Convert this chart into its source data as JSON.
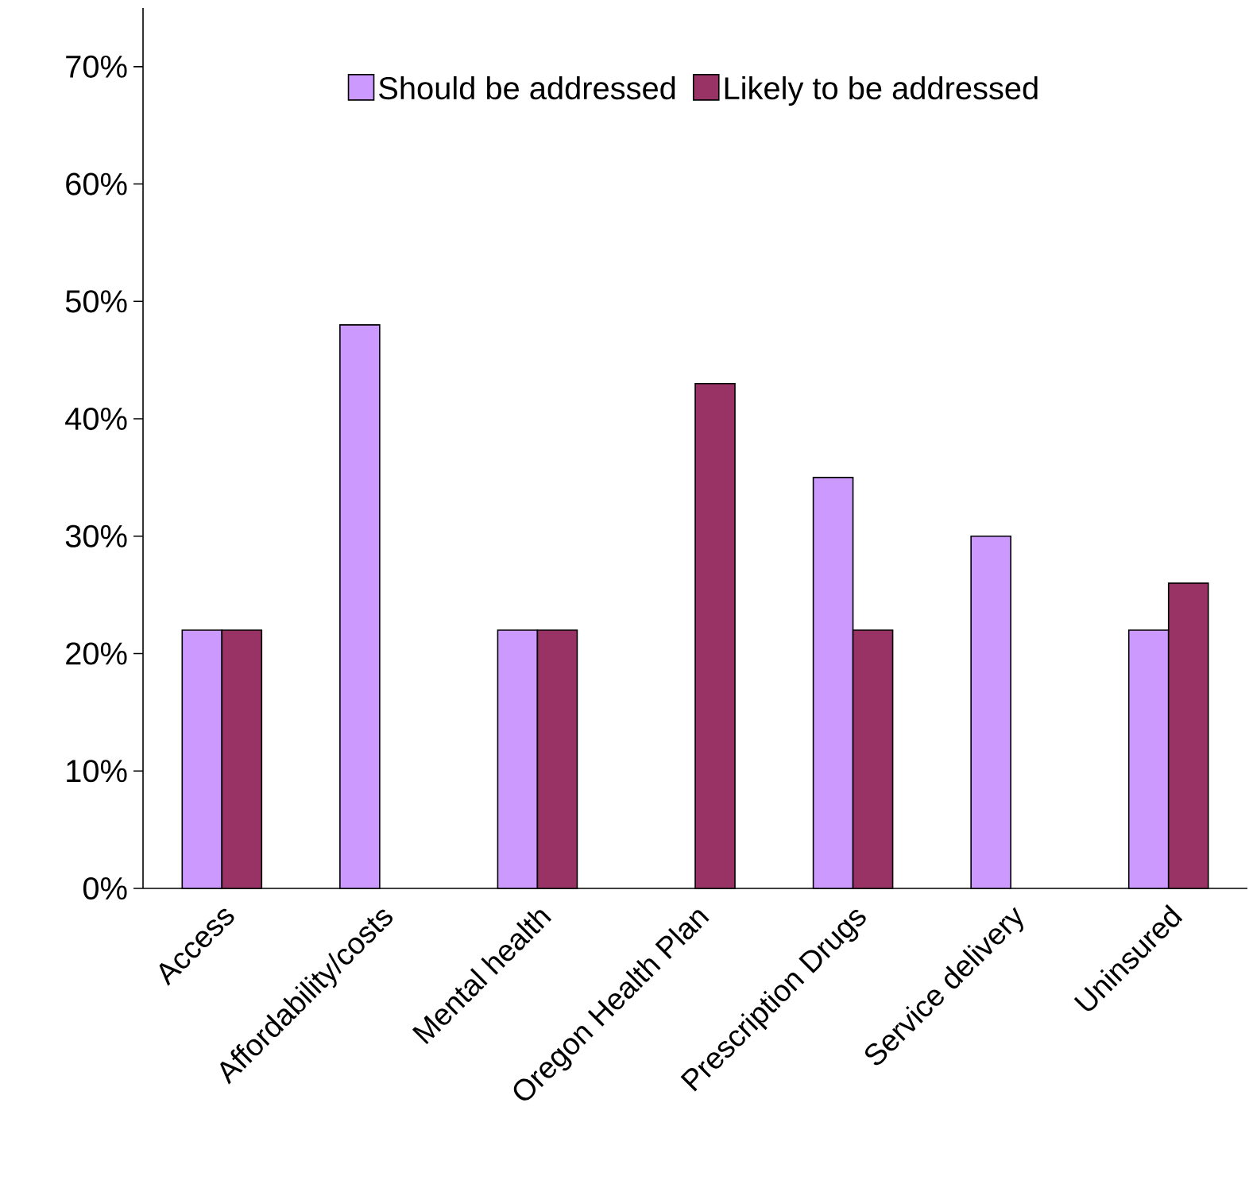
{
  "chart_data": {
    "type": "bar",
    "categories": [
      "Access",
      "Affordability/costs",
      "Mental health",
      "Oregon Health Plan",
      "Prescription Drugs",
      "Service delivery",
      "Uninsured"
    ],
    "series": [
      {
        "name": "Should be addressed",
        "color": "#cc99ff",
        "values": [
          22,
          48,
          22,
          null,
          35,
          30,
          22
        ]
      },
      {
        "name": "Likely to be addressed",
        "color": "#993366",
        "values": [
          22,
          null,
          22,
          43,
          22,
          null,
          26
        ]
      }
    ],
    "ylim": [
      0,
      75
    ],
    "yticks": [
      {
        "value": 0,
        "label": "0%"
      },
      {
        "value": 10,
        "label": "10%"
      },
      {
        "value": 20,
        "label": "20%"
      },
      {
        "value": 30,
        "label": "30%"
      },
      {
        "value": 40,
        "label": "40%"
      },
      {
        "value": 50,
        "label": "50%"
      },
      {
        "value": 60,
        "label": "60%"
      },
      {
        "value": 70,
        "label": "70%"
      }
    ],
    "legend": "top",
    "grid": false
  }
}
